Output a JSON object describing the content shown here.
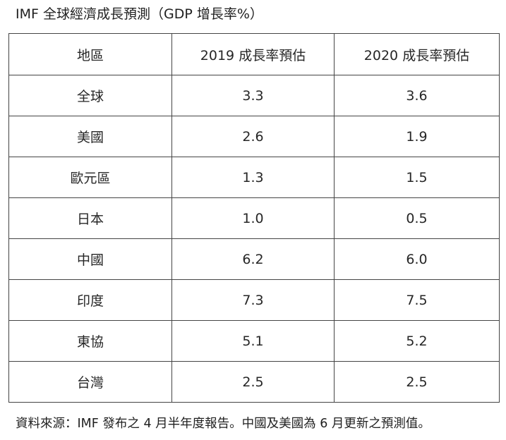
{
  "title": "IMF 全球經濟成長預測（GDP 增長率%）",
  "table": {
    "headers": [
      "地區",
      "2019 成長率預估",
      "2020 成長率預估"
    ],
    "rows": [
      {
        "region": "全球",
        "y2019": "3.3",
        "y2020": "3.6"
      },
      {
        "region": "美國",
        "y2019": "2.6",
        "y2020": "1.9"
      },
      {
        "region": "歐元區",
        "y2019": "1.3",
        "y2020": "1.5"
      },
      {
        "region": "日本",
        "y2019": "1.0",
        "y2020": "0.5"
      },
      {
        "region": "中國",
        "y2019": "6.2",
        "y2020": "6.0"
      },
      {
        "region": "印度",
        "y2019": "7.3",
        "y2020": "7.5"
      },
      {
        "region": "東協",
        "y2019": "5.1",
        "y2020": "5.2"
      },
      {
        "region": "台灣",
        "y2019": "2.5",
        "y2020": "2.5"
      }
    ]
  },
  "source_note": "資料來源：IMF 發布之 4 月半年度報告。中國及美國為 6 月更新之預測值。"
}
